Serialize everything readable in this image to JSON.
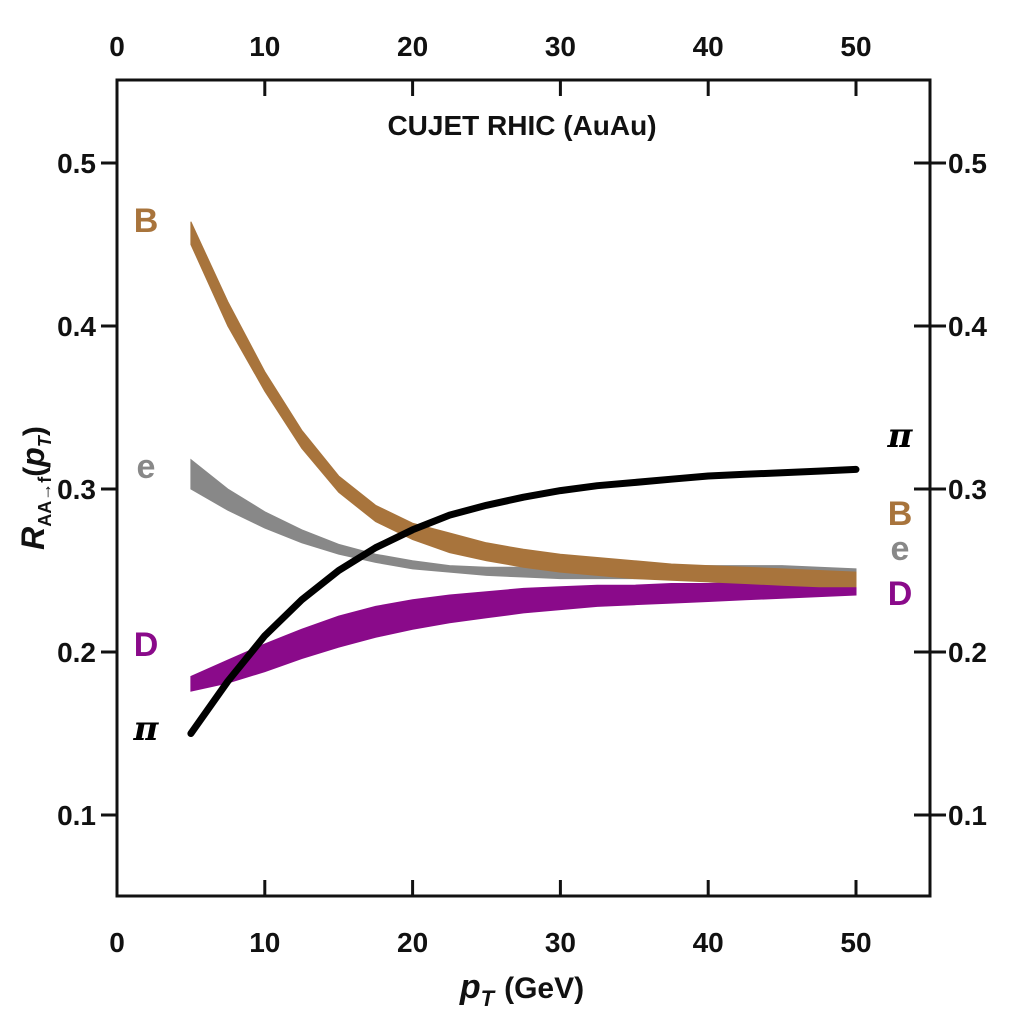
{
  "chart_data": {
    "type": "area",
    "title": "CUJET RHIC (AuAu)",
    "xlabel": {
      "main": "p",
      "sub": "T",
      "unit": "(GeV)"
    },
    "ylabel": {
      "main": "R",
      "sub": "AA→f",
      "arg_open": "(",
      "arg_main": "p",
      "arg_sub": "T",
      "arg_close": ")"
    },
    "xlim": [
      0,
      55
    ],
    "ylim": [
      0.05,
      0.55
    ],
    "xticks": [
      0,
      10,
      20,
      30,
      40,
      50
    ],
    "yticks": [
      0.1,
      0.2,
      0.3,
      0.4,
      0.5
    ],
    "xtick_labels": [
      "0",
      "10",
      "20",
      "30",
      "40",
      "50"
    ],
    "ytick_labels": [
      "0.1",
      "0.2",
      "0.3",
      "0.4",
      "0.5"
    ],
    "top_axis_labels": true,
    "right_axis_labels": true,
    "grid": false,
    "series": [
      {
        "name": "B",
        "color": "#a8743c",
        "kind": "band",
        "x": [
          5,
          7.5,
          10,
          12.5,
          15,
          17.5,
          20,
          22.5,
          25,
          27.5,
          30,
          32.5,
          35,
          37.5,
          40,
          42.5,
          45,
          47.5,
          50
        ],
        "y_low": [
          0.45,
          0.4,
          0.36,
          0.325,
          0.298,
          0.28,
          0.269,
          0.261,
          0.256,
          0.252,
          0.249,
          0.247,
          0.245,
          0.244,
          0.243,
          0.242,
          0.241,
          0.24,
          0.24
        ],
        "y_high": [
          0.464,
          0.415,
          0.372,
          0.336,
          0.308,
          0.29,
          0.279,
          0.273,
          0.267,
          0.263,
          0.26,
          0.258,
          0.256,
          0.254,
          0.253,
          0.252,
          0.251,
          0.25,
          0.249
        ],
        "label_left": "B",
        "label_right": "B"
      },
      {
        "name": "e",
        "color": "#888888",
        "kind": "band",
        "x": [
          5,
          7.5,
          10,
          12.5,
          15,
          17.5,
          20,
          22.5,
          25,
          27.5,
          30,
          32.5,
          35,
          37.5,
          40,
          42.5,
          45,
          47.5,
          50
        ],
        "y_low": [
          0.3,
          0.287,
          0.276,
          0.267,
          0.26,
          0.255,
          0.251,
          0.249,
          0.247,
          0.246,
          0.245,
          0.245,
          0.245,
          0.245,
          0.245,
          0.244,
          0.244,
          0.243,
          0.243
        ],
        "y_high": [
          0.318,
          0.3,
          0.286,
          0.275,
          0.266,
          0.26,
          0.256,
          0.253,
          0.252,
          0.252,
          0.252,
          0.252,
          0.253,
          0.253,
          0.253,
          0.253,
          0.253,
          0.252,
          0.251
        ],
        "label_left": "e",
        "label_right": "e"
      },
      {
        "name": "D",
        "color": "#8a0a8a",
        "kind": "band",
        "x": [
          5,
          7.5,
          10,
          12.5,
          15,
          17.5,
          20,
          22.5,
          25,
          27.5,
          30,
          32.5,
          35,
          37.5,
          40,
          42.5,
          45,
          47.5,
          50
        ],
        "y_low": [
          0.176,
          0.181,
          0.188,
          0.196,
          0.203,
          0.209,
          0.214,
          0.218,
          0.221,
          0.224,
          0.226,
          0.228,
          0.229,
          0.23,
          0.231,
          0.232,
          0.233,
          0.234,
          0.235
        ],
        "y_high": [
          0.185,
          0.195,
          0.205,
          0.214,
          0.222,
          0.228,
          0.232,
          0.235,
          0.237,
          0.239,
          0.24,
          0.241,
          0.241,
          0.242,
          0.242,
          0.243,
          0.243,
          0.243,
          0.243
        ],
        "label_left": "D",
        "label_right": "D"
      },
      {
        "name": "π",
        "color": "#000000",
        "kind": "line",
        "x": [
          5,
          7.5,
          10,
          12.5,
          15,
          17.5,
          20,
          22.5,
          25,
          27.5,
          30,
          32.5,
          35,
          37.5,
          40,
          42.5,
          45,
          47.5,
          50
        ],
        "y": [
          0.15,
          0.182,
          0.21,
          0.232,
          0.25,
          0.264,
          0.275,
          0.284,
          0.29,
          0.295,
          0.299,
          0.302,
          0.304,
          0.306,
          0.308,
          0.309,
          0.31,
          0.311,
          0.312
        ],
        "label_left": "π",
        "label_right": "π"
      }
    ]
  }
}
